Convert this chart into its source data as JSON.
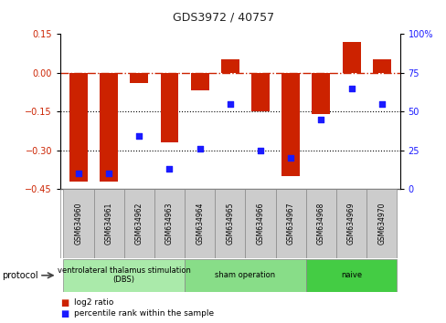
{
  "title": "GDS3972 / 40757",
  "samples": [
    "GSM634960",
    "GSM634961",
    "GSM634962",
    "GSM634963",
    "GSM634964",
    "GSM634965",
    "GSM634966",
    "GSM634967",
    "GSM634968",
    "GSM634969",
    "GSM634970"
  ],
  "log2_ratio": [
    -0.42,
    -0.42,
    -0.04,
    -0.27,
    -0.07,
    0.05,
    -0.15,
    -0.4,
    -0.16,
    0.12,
    0.05
  ],
  "percentile_rank": [
    10,
    10,
    34,
    13,
    26,
    55,
    25,
    20,
    45,
    65,
    55
  ],
  "bar_color": "#cc2200",
  "dot_color": "#1a1aff",
  "ylim_left": [
    -0.45,
    0.15
  ],
  "ylim_right": [
    0,
    100
  ],
  "yticks_left": [
    0.15,
    0,
    -0.15,
    -0.3,
    -0.45
  ],
  "yticks_right": [
    100,
    75,
    50,
    25,
    0
  ],
  "ytick_labels_right": [
    "100%",
    "75",
    "50",
    "25",
    "0"
  ],
  "dotted_lines": [
    -0.15,
    -0.3
  ],
  "protocols": [
    {
      "label": "ventrolateral thalamus stimulation\n(DBS)",
      "start": 0,
      "end": 3,
      "color": "#aaeaaa"
    },
    {
      "label": "sham operation",
      "start": 4,
      "end": 7,
      "color": "#88dd88"
    },
    {
      "label": "naive",
      "start": 8,
      "end": 10,
      "color": "#44cc44"
    }
  ],
  "legend_bar_label": "log2 ratio",
  "legend_dot_label": "percentile rank within the sample",
  "protocol_label": "protocol",
  "background_color": "#ffffff",
  "plot_bg_color": "#ffffff",
  "tick_label_color_left": "#cc2200",
  "tick_label_color_right": "#1a1aff",
  "sample_box_color": "#cccccc",
  "sample_box_edge": "#888888"
}
